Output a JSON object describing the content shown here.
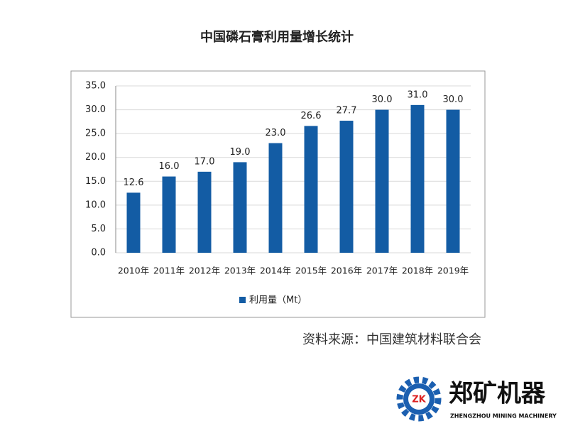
{
  "chart_data": {
    "type": "bar",
    "title": "中国磷石膏利用量增长统计",
    "categories": [
      "2010年",
      "2011年",
      "2012年",
      "2013年",
      "2014年",
      "2015年",
      "2016年",
      "2017年",
      "2018年",
      "2019年"
    ],
    "series": [
      {
        "name": "利用量（Mt）",
        "color": "#135ca4",
        "values": [
          12.6,
          16,
          17,
          19,
          23,
          26.6,
          27.7,
          30,
          31,
          30
        ],
        "value_labels": [
          "12.6",
          "16.0",
          "17.0",
          "19.0",
          "23.0",
          "26.6",
          "27.7",
          "30.0",
          "31.0",
          "30.0"
        ]
      }
    ],
    "ylim": [
      0,
      35
    ],
    "yticks": [
      {
        "value": 0,
        "label": "0.0"
      },
      {
        "value": 5,
        "label": "5.0"
      },
      {
        "value": 10,
        "label": "10.0"
      },
      {
        "value": 15,
        "label": "15.0"
      },
      {
        "value": 20,
        "label": "20.0"
      },
      {
        "value": 25,
        "label": "25.0"
      },
      {
        "value": 30,
        "label": "30.0"
      },
      {
        "value": 35,
        "label": "35.0"
      }
    ],
    "grid": true,
    "legend": "bottom"
  },
  "footer": {
    "source": "资料来源：中国建筑材料联合会",
    "logo_mark": "ZK",
    "brand": "郑矿机器",
    "brand_en": "ZHENGZHOU MINING MACHINERY"
  }
}
